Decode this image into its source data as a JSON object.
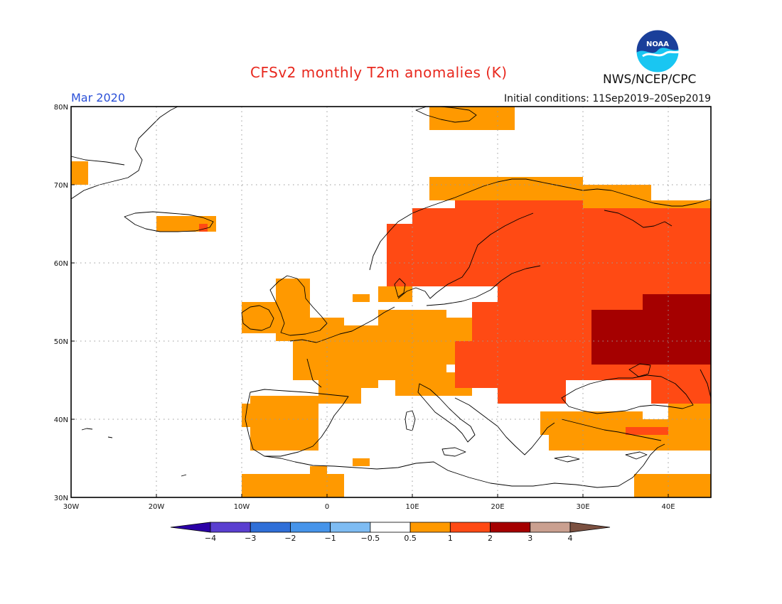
{
  "title": "CFSv2 monthly T2m anomalies (K)",
  "period": "Mar 2020",
  "initial_conditions": "Initial conditions: 11Sep2019–20Sep2019",
  "agency": "NWS/NCEP/CPC",
  "logo_text": "NOAA",
  "axes": {
    "lon_labels": [
      "30W",
      "20W",
      "10W",
      "0",
      "10E",
      "20E",
      "30E",
      "40E"
    ],
    "lat_labels": [
      "80N",
      "70N",
      "60N",
      "50N",
      "40N",
      "30N"
    ]
  },
  "legend": {
    "labels": [
      "−4",
      "−3",
      "−2",
      "−1",
      "−0.5",
      "0.5",
      "1",
      "2",
      "3",
      "4"
    ],
    "colors": [
      "#2b00a6",
      "#5a3fd0",
      "#2f6fd8",
      "#4694ea",
      "#7ebcf3",
      "#ffffff",
      "#ff9900",
      "#ff4a14",
      "#a50000",
      "#caa090",
      "#7b5040"
    ]
  },
  "anomaly_colors": {
    "c1": "#ff9900",
    "c2": "#ff4a14",
    "c3": "#a50000"
  },
  "map_data": {
    "projection": "lat-lon",
    "lon_range": [
      -30,
      45
    ],
    "lat_range": [
      30,
      80
    ],
    "cells": [
      {
        "level": 1,
        "lon": [
          -30,
          -28
        ],
        "lat": [
          70,
          73
        ]
      },
      {
        "level": 1,
        "lon": [
          -20,
          -13
        ],
        "lat": [
          64,
          66
        ]
      },
      {
        "level": 2,
        "lon": [
          -15,
          -14
        ],
        "lat": [
          64,
          65
        ]
      },
      {
        "level": 1,
        "lon": [
          -10,
          -6
        ],
        "lat": [
          51,
          55
        ]
      },
      {
        "level": 1,
        "lon": [
          -6,
          -2
        ],
        "lat": [
          50,
          58
        ]
      },
      {
        "level": 1,
        "lon": [
          -2,
          2
        ],
        "lat": [
          50,
          53
        ]
      },
      {
        "level": 1,
        "lon": [
          -4,
          2
        ],
        "lat": [
          45,
          50
        ]
      },
      {
        "level": 1,
        "lon": [
          -1,
          4
        ],
        "lat": [
          42,
          46
        ]
      },
      {
        "level": 1,
        "lon": [
          2,
          6
        ],
        "lat": [
          44,
          52
        ]
      },
      {
        "level": 1,
        "lon": [
          6,
          14
        ],
        "lat": [
          45,
          54
        ]
      },
      {
        "level": 1,
        "lon": [
          8,
          17
        ],
        "lat": [
          43,
          46
        ]
      },
      {
        "level": 1,
        "lon": [
          14,
          18
        ],
        "lat": [
          47,
          53
        ]
      },
      {
        "level": 1,
        "lon": [
          23,
          28
        ],
        "lat": [
          42,
          47
        ]
      },
      {
        "level": 1,
        "lon": [
          -9,
          -1
        ],
        "lat": [
          36,
          43
        ]
      },
      {
        "level": 1,
        "lon": [
          -10,
          -7
        ],
        "lat": [
          39,
          42
        ]
      },
      {
        "level": 1,
        "lon": [
          3,
          5
        ],
        "lat": [
          34,
          35
        ]
      },
      {
        "level": 1,
        "lon": [
          -10,
          2
        ],
        "lat": [
          30,
          33
        ]
      },
      {
        "level": 1,
        "lon": [
          -2,
          0
        ],
        "lat": [
          33,
          34
        ]
      },
      {
        "level": 1,
        "lon": [
          25,
          37
        ],
        "lat": [
          38,
          41
        ]
      },
      {
        "level": 1,
        "lon": [
          26,
          45
        ],
        "lat": [
          36,
          40
        ]
      },
      {
        "level": 1,
        "lon": [
          40,
          45
        ],
        "lat": [
          40,
          42
        ]
      },
      {
        "level": 1,
        "lon": [
          36,
          45
        ],
        "lat": [
          30,
          33
        ]
      },
      {
        "level": 1,
        "lon": [
          12,
          14
        ],
        "lat": [
          59,
          62
        ]
      },
      {
        "level": 1,
        "lon": [
          6,
          10
        ],
        "lat": [
          55,
          57
        ]
      },
      {
        "level": 1,
        "lon": [
          3,
          5
        ],
        "lat": [
          55,
          56
        ]
      },
      {
        "level": 1,
        "lon": [
          12,
          20
        ],
        "lat": [
          68,
          71
        ]
      },
      {
        "level": 1,
        "lon": [
          20,
          30
        ],
        "lat": [
          68,
          71
        ]
      },
      {
        "level": 1,
        "lon": [
          30,
          38
        ],
        "lat": [
          67,
          70
        ]
      },
      {
        "level": 1,
        "lon": [
          38,
          45
        ],
        "lat": [
          66,
          68
        ]
      },
      {
        "level": 1,
        "lon": [
          12,
          22
        ],
        "lat": [
          77,
          80
        ]
      },
      {
        "level": 2,
        "lon": [
          7,
          15
        ],
        "lat": [
          57,
          65
        ]
      },
      {
        "level": 2,
        "lon": [
          10,
          18
        ],
        "lat": [
          62,
          67
        ]
      },
      {
        "level": 2,
        "lon": [
          15,
          20
        ],
        "lat": [
          57,
          68
        ]
      },
      {
        "level": 2,
        "lon": [
          20,
          30
        ],
        "lat": [
          55,
          68
        ]
      },
      {
        "level": 2,
        "lon": [
          30,
          45
        ],
        "lat": [
          55,
          67
        ]
      },
      {
        "level": 2,
        "lon": [
          17,
          30
        ],
        "lat": [
          45,
          55
        ]
      },
      {
        "level": 2,
        "lon": [
          15,
          20
        ],
        "lat": [
          44,
          50
        ]
      },
      {
        "level": 2,
        "lon": [
          20,
          28
        ],
        "lat": [
          42,
          46
        ]
      },
      {
        "level": 2,
        "lon": [
          30,
          45
        ],
        "lat": [
          45,
          55
        ]
      },
      {
        "level": 2,
        "lon": [
          38,
          45
        ],
        "lat": [
          42,
          45
        ]
      },
      {
        "level": 2,
        "lon": [
          35,
          40
        ],
        "lat": [
          38,
          39
        ]
      },
      {
        "level": 3,
        "lon": [
          31,
          45
        ],
        "lat": [
          47,
          54
        ]
      },
      {
        "level": 3,
        "lon": [
          37,
          45
        ],
        "lat": [
          54,
          56
        ]
      }
    ]
  }
}
